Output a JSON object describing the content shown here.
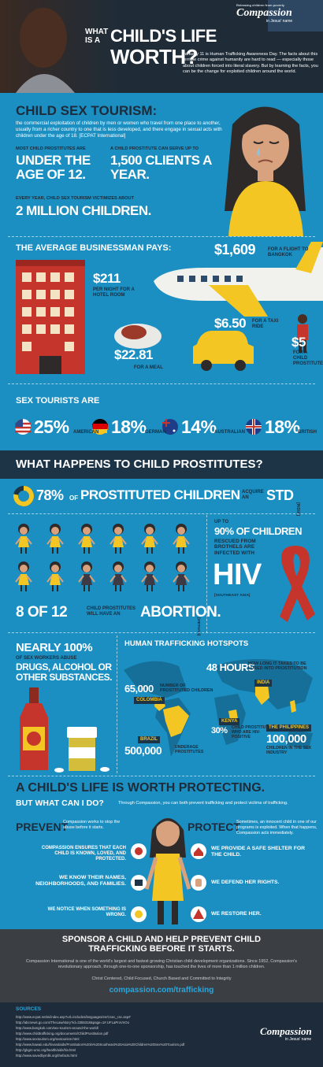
{
  "header": {
    "title_lead": "WHAT IS A",
    "title_main": "CHILD'S LIFE",
    "title_end": "WORTH?",
    "intro": "January 11 is Human Trafficking Awareness Day. The facts about this terrible crime against humanity are hard to read — especially those about children forced into literal slavery. But by learning the facts, you can be the change for exploited children around the world.",
    "logo_tagline": "Releasing children from poverty",
    "logo_name": "Compassion",
    "logo_sub": "in Jesus' name"
  },
  "tourism": {
    "title": "CHILD SEX TOURISM:",
    "definition": "the commercial exploitation of children by men or women who travel from one place to another, usually from a richer country to one that is less developed, and there engage in sexual acts with children under the age of 18. [ECPAT International]",
    "stats": [
      {
        "label": "MOST CHILD PROSTITUTES ARE",
        "value": "UNDER THE AGE OF 12."
      },
      {
        "label": "A CHILD PROSTITUTE CAN SERVE UP TO",
        "value": "1,500 CLIENTS A YEAR."
      },
      {
        "label": "EVERY YEAR, CHILD SEX TOURISM VICTIMIZES ABOUT",
        "value": "2 MILLION CHILDREN."
      }
    ]
  },
  "costs": {
    "title": "THE AVERAGE BUSINESSMAN PAYS:",
    "items": [
      {
        "amount": "$1,609",
        "label": "FOR A FLIGHT TO BANGKOK"
      },
      {
        "amount": "$211",
        "label": "PER NIGHT FOR A HOTEL ROOM"
      },
      {
        "amount": "$6.50",
        "label": "FOR A TAXI RIDE"
      },
      {
        "amount": "$5",
        "label": "FOR A CHILD PROSTITUTE"
      },
      {
        "amount": "$22.81",
        "label": "FOR A MEAL"
      }
    ]
  },
  "tourists": {
    "title": "SEX TOURISTS ARE",
    "items": [
      {
        "percent": "25%",
        "nationality": "AMERICAN"
      },
      {
        "percent": "18%",
        "nationality": "GERMAN"
      },
      {
        "percent": "14%",
        "nationality": "AUSTRALIAN"
      },
      {
        "percent": "18%",
        "nationality": "BRITISH"
      }
    ]
  },
  "outcomes": {
    "title": "WHAT HAPPENS TO CHILD PROSTITUTES?",
    "std": {
      "percent": "78%",
      "of": "OF",
      "subject": "PROSTITUTED CHILDREN",
      "verb": "ACQUIRE AN",
      "result": "STD",
      "source": "[INDIA]"
    },
    "abortion": {
      "count": "8 OF 12",
      "label": "CHILD PROSTITUTES WILL HAVE AN",
      "result": "ABORTION.",
      "source": "[VIETNAM]"
    },
    "hiv": {
      "lead": "UP TO",
      "percent": "90% OF CHILDREN",
      "label": "RESCUED FROM BROTHELS ARE INFECTED WITH",
      "result": "HIV",
      "source": "[SOUTHEAST ASIA]"
    }
  },
  "substances": {
    "headline": "NEARLY 100%",
    "label": "OF SEX WORKERS ABUSE",
    "result": "DRUGS, ALCOHOL OR OTHER SUBSTANCES."
  },
  "hotspots": {
    "title": "HUMAN TRAFFICKING HOTSPOTS",
    "india": {
      "stat": "48 HOURS",
      "label": "HOW LONG IT TAKES TO BE LURED INTO PROSTITUTION",
      "country": "INDIA"
    },
    "colombia": {
      "stat": "65,000",
      "label": "NUMBER OF PROSTITUTED CHILDREN",
      "country": "COLOMBIA"
    },
    "kenya": {
      "country": "KENYA",
      "stat": "30%",
      "label": "CHILD PROSTITUTES WHO ARE HIV-POSITIVE"
    },
    "brazil": {
      "country": "BRAZIL",
      "stat": "500,000",
      "label": "UNDERAGE PROSTITUTES"
    },
    "philippines": {
      "country": "THE PHILIPPINES",
      "stat": "100,000",
      "label": "CHILDREN IN THE SEX INDUSTRY"
    }
  },
  "protecting": {
    "title": "A CHILD'S LIFE IS WORTH PROTECTING.",
    "question": "BUT WHAT CAN I DO?",
    "answer": "Through Compassion, you can both prevent trafficking and protect victims of trafficking.",
    "prevent": {
      "title": "PREVENT",
      "description": "Compassion works to stop the abuse before it starts.",
      "items": [
        "COMPASSION ENSURES THAT EACH CHILD IS KNOWN, LOVED, AND PROTECTED.",
        "WE KNOW THEIR NAMES, NEIGHBORHOODS, AND FAMILIES.",
        "WE NOTICE WHEN SOMETHING IS WRONG."
      ]
    },
    "protect": {
      "title": "PROTECT",
      "description": "Sometimes, an innocent child in one of our programs is exploited. When that happens, Compassion acts immediately.",
      "items": [
        "WE PROVIDE A SAFE SHELTER FOR THE CHILD.",
        "WE DEFEND HER RIGHTS.",
        "WE RESTORE HER."
      ]
    }
  },
  "sponsor": {
    "headline": "SPONSOR A CHILD AND HELP PREVENT CHILD TRAFFICKING BEFORE IT STARTS.",
    "about": "Compassion International is one of the world's largest and fastest growing Christian child development organizations. Since 1952, Compassion's revolutionary approach, through one-to-one sponsorship, has touched the lives of more than 1 million children.",
    "values": "Christ Centered, Child Focused, Church Based and Committed to Integrity",
    "url": "compassion.com/trafficking"
  },
  "sources": {
    "title": "SOURCES",
    "items": [
      "http://www.ecpat.net/ei/index.asp?url=includes/languages/en/Csec_csc.asp#",
      "http://abcnews.go.com/TheLaw/story?id=3355318&page=1#.UFLaProVnOo",
      "http://www.bangkok.com/sex-tourism-around-the-world/",
      "http://www.childtrafficking.org/documents/ChildProstitution.pdf",
      "http://www.sextourism.org/sextourism.html",
      "http://www.hawaii.edu/hivandaids/Prostitution%20in%20Southeast%20Asia%20Children%20Sex%20Tourism.pdf",
      "http://gbgm-umc.org/health/aids/hiv.html",
      "http://www.savedbymilk.org/thefacts.html"
    ],
    "logo_name": "Compassion",
    "logo_sub": "in Jesus' name"
  }
}
